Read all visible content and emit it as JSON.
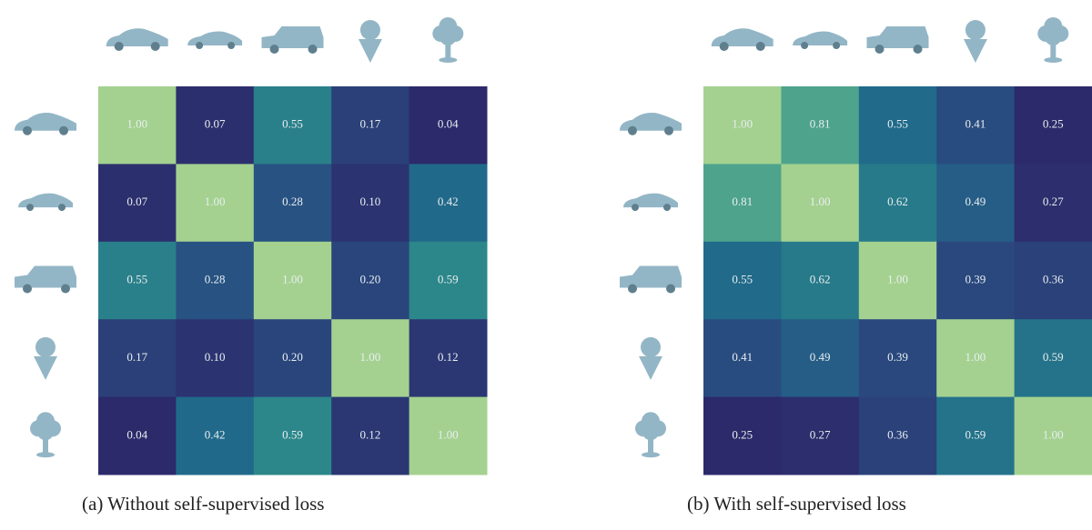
{
  "chart_data": [
    {
      "type": "heatmap",
      "title": "(a) Without self-supervised loss",
      "values": [
        [
          1,
          0.07,
          0.55,
          0.17,
          0.04
        ],
        [
          0.07,
          1,
          0.28,
          0.1,
          0.42
        ],
        [
          0.55,
          0.28,
          1,
          0.2,
          0.59
        ],
        [
          0.17,
          0.1,
          0.2,
          1,
          0.12
        ],
        [
          0.04,
          0.42,
          0.59,
          0.12,
          1
        ]
      ],
      "value_labels": [
        [
          "1.00",
          "0.07",
          "0.55",
          "0.17",
          "0.04"
        ],
        [
          "0.07",
          "1.00",
          "0.28",
          "0.10",
          "0.42"
        ],
        [
          "0.55",
          "0.28",
          "1.00",
          "0.20",
          "0.59"
        ],
        [
          "0.17",
          "0.10",
          "0.20",
          "1.00",
          "0.12"
        ],
        [
          "0.04",
          "0.42",
          "0.59",
          "0.12",
          "1.00"
        ]
      ],
      "colormap": [
        "#2c2a6a",
        "#2a4a7f",
        "#216a8a",
        "#2e8c8a",
        "#5aab8e",
        "#a4d190"
      ]
    },
    {
      "type": "heatmap",
      "title": "(b) With self-supervised loss",
      "values": [
        [
          1,
          0.81,
          0.55,
          0.41,
          0.25
        ],
        [
          0.81,
          1,
          0.62,
          0.49,
          0.27
        ],
        [
          0.55,
          0.62,
          1,
          0.39,
          0.36
        ],
        [
          0.41,
          0.49,
          0.39,
          1,
          0.59
        ],
        [
          0.25,
          0.27,
          0.36,
          0.59,
          1
        ]
      ],
      "value_labels": [
        [
          "1.00",
          "0.81",
          "0.55",
          "0.41",
          "0.25"
        ],
        [
          "0.81",
          "1.00",
          "0.62",
          "0.49",
          "0.27"
        ],
        [
          "0.55",
          "0.62",
          "1.00",
          "0.39",
          "0.36"
        ],
        [
          "0.41",
          "0.49",
          "0.39",
          "1.00",
          "0.59"
        ],
        [
          "0.25",
          "0.27",
          "0.36",
          "0.59",
          "1.00"
        ]
      ],
      "colormap": [
        "#2c2a6a",
        "#2a4a7f",
        "#216a8a",
        "#2e8c8a",
        "#5aab8e",
        "#a4d190"
      ]
    }
  ]
}
